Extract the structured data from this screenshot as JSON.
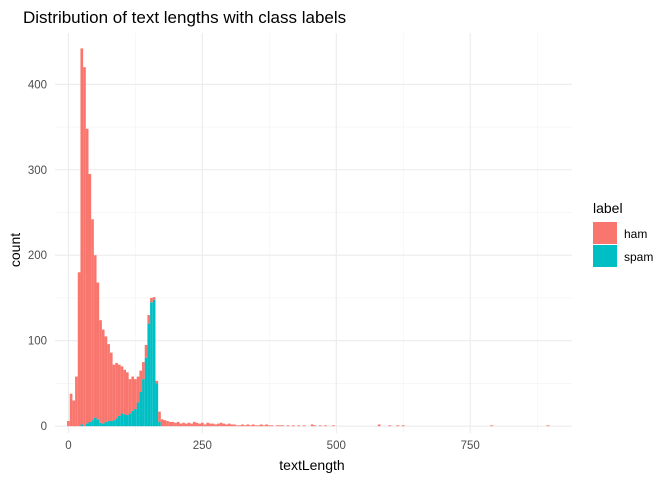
{
  "chart_data": {
    "type": "bar",
    "stacked": true,
    "title": "Distribution of text lengths with class labels",
    "xlabel": "textLength",
    "ylabel": "count",
    "xlim": [
      -25,
      940
    ],
    "ylim": [
      -8,
      460
    ],
    "x_ticks": [
      0,
      250,
      500,
      750
    ],
    "y_ticks": [
      0,
      100,
      200,
      300,
      400
    ],
    "grid": true,
    "legend": {
      "title": "label",
      "placement": "right"
    },
    "bin_width": 5,
    "series": [
      {
        "name": "ham",
        "color": "#F8766D",
        "bins": [
          [
            0,
            6
          ],
          [
            5,
            38
          ],
          [
            10,
            30
          ],
          [
            15,
            58
          ],
          [
            20,
            180
          ],
          [
            25,
            440
          ],
          [
            30,
            420
          ],
          [
            35,
            345
          ],
          [
            40,
            290
          ],
          [
            45,
            235
          ],
          [
            50,
            190
          ],
          [
            55,
            160
          ],
          [
            60,
            120
          ],
          [
            65,
            110
          ],
          [
            70,
            100
          ],
          [
            75,
            90
          ],
          [
            80,
            80
          ],
          [
            85,
            65
          ],
          [
            90,
            65
          ],
          [
            95,
            60
          ],
          [
            100,
            55
          ],
          [
            105,
            52
          ],
          [
            110,
            50
          ],
          [
            115,
            40
          ],
          [
            120,
            40
          ],
          [
            125,
            35
          ],
          [
            130,
            30
          ],
          [
            135,
            25
          ],
          [
            140,
            20
          ],
          [
            145,
            15
          ],
          [
            150,
            10
          ],
          [
            155,
            5
          ],
          [
            160,
            3
          ],
          [
            165,
            3
          ],
          [
            170,
            12
          ],
          [
            175,
            8
          ],
          [
            180,
            7
          ],
          [
            185,
            6
          ],
          [
            190,
            5
          ],
          [
            195,
            5
          ],
          [
            200,
            4
          ],
          [
            205,
            5
          ],
          [
            210,
            3
          ],
          [
            215,
            4
          ],
          [
            220,
            3
          ],
          [
            225,
            4
          ],
          [
            230,
            3
          ],
          [
            235,
            5
          ],
          [
            240,
            4
          ],
          [
            245,
            3
          ],
          [
            250,
            4
          ],
          [
            255,
            2
          ],
          [
            260,
            4
          ],
          [
            265,
            3
          ],
          [
            270,
            3
          ],
          [
            275,
            2
          ],
          [
            280,
            3
          ],
          [
            285,
            4
          ],
          [
            290,
            3
          ],
          [
            295,
            2
          ],
          [
            300,
            3
          ],
          [
            305,
            2
          ],
          [
            310,
            2
          ],
          [
            315,
            1
          ],
          [
            320,
            1
          ],
          [
            325,
            2
          ],
          [
            330,
            1
          ],
          [
            335,
            2
          ],
          [
            340,
            1
          ],
          [
            345,
            2
          ],
          [
            350,
            1
          ],
          [
            355,
            1
          ],
          [
            360,
            2
          ],
          [
            365,
            1
          ],
          [
            370,
            2
          ],
          [
            375,
            1
          ],
          [
            380,
            1
          ],
          [
            390,
            1
          ],
          [
            395,
            1
          ],
          [
            400,
            1
          ],
          [
            410,
            1
          ],
          [
            420,
            1
          ],
          [
            430,
            1
          ],
          [
            440,
            1
          ],
          [
            455,
            2
          ],
          [
            460,
            1
          ],
          [
            470,
            1
          ],
          [
            480,
            1
          ],
          [
            495,
            1
          ],
          [
            580,
            2
          ],
          [
            600,
            1
          ],
          [
            615,
            1
          ],
          [
            625,
            1
          ],
          [
            790,
            1
          ],
          [
            895,
            1
          ]
        ]
      },
      {
        "name": "spam",
        "color": "#00BFC4",
        "bins": [
          [
            25,
            2
          ],
          [
            35,
            3
          ],
          [
            40,
            5
          ],
          [
            45,
            7
          ],
          [
            50,
            10
          ],
          [
            55,
            8
          ],
          [
            60,
            4
          ],
          [
            65,
            3
          ],
          [
            70,
            5
          ],
          [
            75,
            6
          ],
          [
            80,
            6
          ],
          [
            85,
            7
          ],
          [
            90,
            9
          ],
          [
            95,
            12
          ],
          [
            100,
            15
          ],
          [
            105,
            14
          ],
          [
            110,
            13
          ],
          [
            115,
            15
          ],
          [
            120,
            18
          ],
          [
            125,
            20
          ],
          [
            130,
            28
          ],
          [
            135,
            40
          ],
          [
            140,
            55
          ],
          [
            145,
            80
          ],
          [
            150,
            120
          ],
          [
            155,
            145
          ],
          [
            160,
            148
          ],
          [
            165,
            50
          ],
          [
            170,
            5
          ]
        ]
      }
    ]
  }
}
